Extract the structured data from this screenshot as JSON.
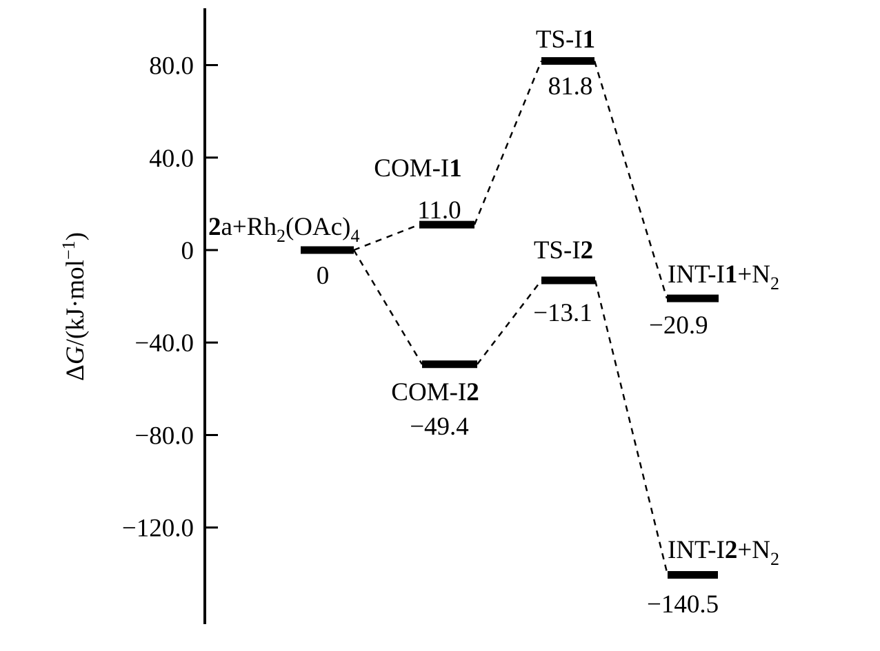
{
  "figure": {
    "background": "#ffffff",
    "ink": "#000000"
  },
  "chart_data": {
    "type": "line",
    "subtype": "reaction-energy-profile",
    "title": "",
    "xlabel": "",
    "ylabel": "ΔG/(kJ·mol⁻¹)",
    "ylabel_parts": [
      {
        "t": "Δ"
      },
      {
        "t": "G",
        "i": 1
      },
      {
        "t": "/(kJ·mol"
      },
      {
        "t": "−1",
        "sup": 1
      },
      {
        "t": ")"
      }
    ],
    "ylim": [
      -165,
      110
    ],
    "grid": false,
    "legend": false,
    "yticks": [
      {
        "value": 80.0,
        "label": "80.0"
      },
      {
        "value": 40.0,
        "label": "40.0"
      },
      {
        "value": 0,
        "label": "0"
      },
      {
        "value": -40.0,
        "label": "−40.0"
      },
      {
        "value": -80.0,
        "label": "−80.0"
      },
      {
        "value": -120.0,
        "label": "−120.0"
      }
    ],
    "levels": [
      {
        "id": "reactants",
        "label": "2a+Rh2(OAc)4",
        "parts": [
          {
            "t": "2",
            "b": 1
          },
          {
            "t": "a+Rh"
          },
          {
            "t": "2",
            "sub": 1
          },
          {
            "t": "(OAc)"
          },
          {
            "t": "4",
            "sub": 1
          }
        ],
        "value": 0,
        "value_label": "0"
      },
      {
        "id": "COM-I1",
        "label": "COM-I1",
        "parts": [
          {
            "t": "COM-I"
          },
          {
            "t": "1",
            "b": 1
          }
        ],
        "value": 11.0,
        "value_label": "11.0"
      },
      {
        "id": "TS-I1",
        "label": "TS-I1",
        "parts": [
          {
            "t": "TS-I"
          },
          {
            "t": "1",
            "b": 1
          }
        ],
        "value": 81.8,
        "value_label": "81.8"
      },
      {
        "id": "INT-I1",
        "label": "INT-I1+N2",
        "parts": [
          {
            "t": "INT-I"
          },
          {
            "t": "1",
            "b": 1
          },
          {
            "t": "+N"
          },
          {
            "t": "2",
            "sub": 1
          }
        ],
        "value": -20.9,
        "value_label": "−20.9"
      },
      {
        "id": "COM-I2",
        "label": "COM-I2",
        "parts": [
          {
            "t": "COM-I"
          },
          {
            "t": "2",
            "b": 1
          }
        ],
        "value": -49.4,
        "value_label": "−49.4"
      },
      {
        "id": "TS-I2",
        "label": "TS-I2",
        "parts": [
          {
            "t": "TS-I"
          },
          {
            "t": "2",
            "b": 1
          }
        ],
        "value": -13.1,
        "value_label": "−13.1"
      },
      {
        "id": "INT-I2",
        "label": "INT-I2+N2",
        "parts": [
          {
            "t": "INT-I"
          },
          {
            "t": "2",
            "b": 1
          },
          {
            "t": "+N"
          },
          {
            "t": "2",
            "sub": 1
          }
        ],
        "value": -140.5,
        "value_label": "−140.5"
      }
    ],
    "pathways": [
      [
        "reactants",
        "COM-I1",
        "TS-I1",
        "INT-I1"
      ],
      [
        "reactants",
        "COM-I2",
        "TS-I2",
        "INT-I2"
      ]
    ]
  }
}
